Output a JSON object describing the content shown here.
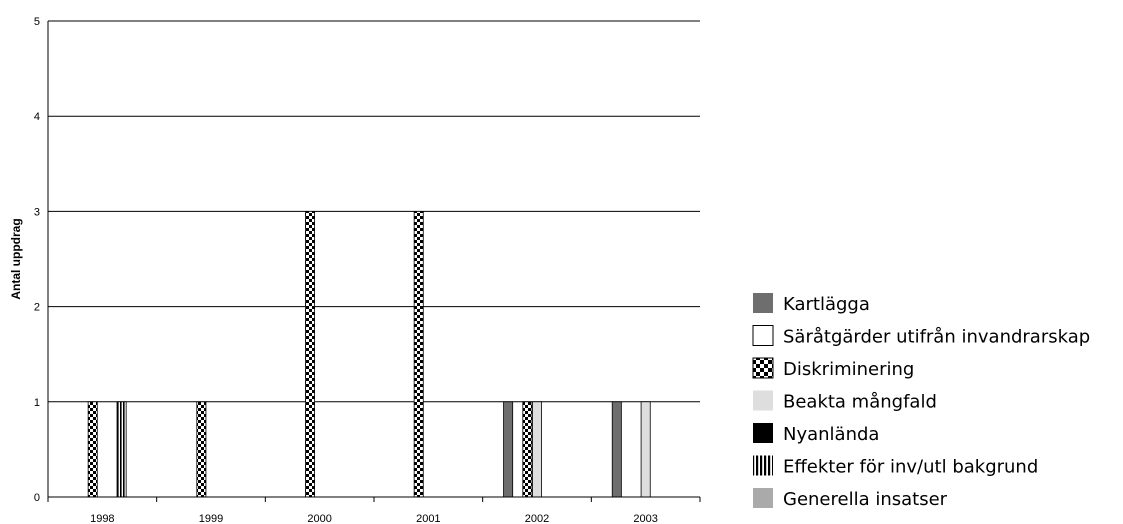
{
  "chart_data": {
    "type": "bar",
    "ylabel": "Antal uppdrag",
    "xlabel": "",
    "ylim": [
      0,
      5
    ],
    "yticks": [
      0,
      1,
      2,
      3,
      4,
      5
    ],
    "grid": true,
    "legend_position": "right",
    "categories": [
      "1998",
      "1999",
      "2000",
      "2001",
      "2002",
      "2003"
    ],
    "series": [
      {
        "name": "Kartlägga",
        "pattern": "solid-dark-gray",
        "color": "#6e6e6e",
        "values": [
          0,
          0,
          0,
          0,
          1,
          1
        ]
      },
      {
        "name": "Säråtgärder utifrån invandrarskap",
        "pattern": "white",
        "color": "#ffffff",
        "values": [
          0,
          0,
          0,
          0,
          0,
          0
        ]
      },
      {
        "name": "Diskriminering",
        "pattern": "checkerboard",
        "color": "#000000",
        "values": [
          1,
          1,
          3,
          3,
          1,
          0
        ]
      },
      {
        "name": "Beakta mångfald",
        "pattern": "solid-light-gray",
        "color": "#dedede",
        "values": [
          0,
          0,
          0,
          0,
          1,
          1
        ]
      },
      {
        "name": "Nyanlända",
        "pattern": "solid-black",
        "color": "#000000",
        "values": [
          0,
          0,
          0,
          0,
          0,
          0
        ]
      },
      {
        "name": "Effekter för inv/utl bakgrund",
        "pattern": "vertical-stripes",
        "color": "#000000",
        "values": [
          1,
          0,
          0,
          0,
          0,
          0
        ]
      },
      {
        "name": "Generella insatser",
        "pattern": "solid-mid-gray",
        "color": "#aaaaaa",
        "values": [
          0,
          0,
          0,
          0,
          0,
          0
        ]
      }
    ]
  }
}
